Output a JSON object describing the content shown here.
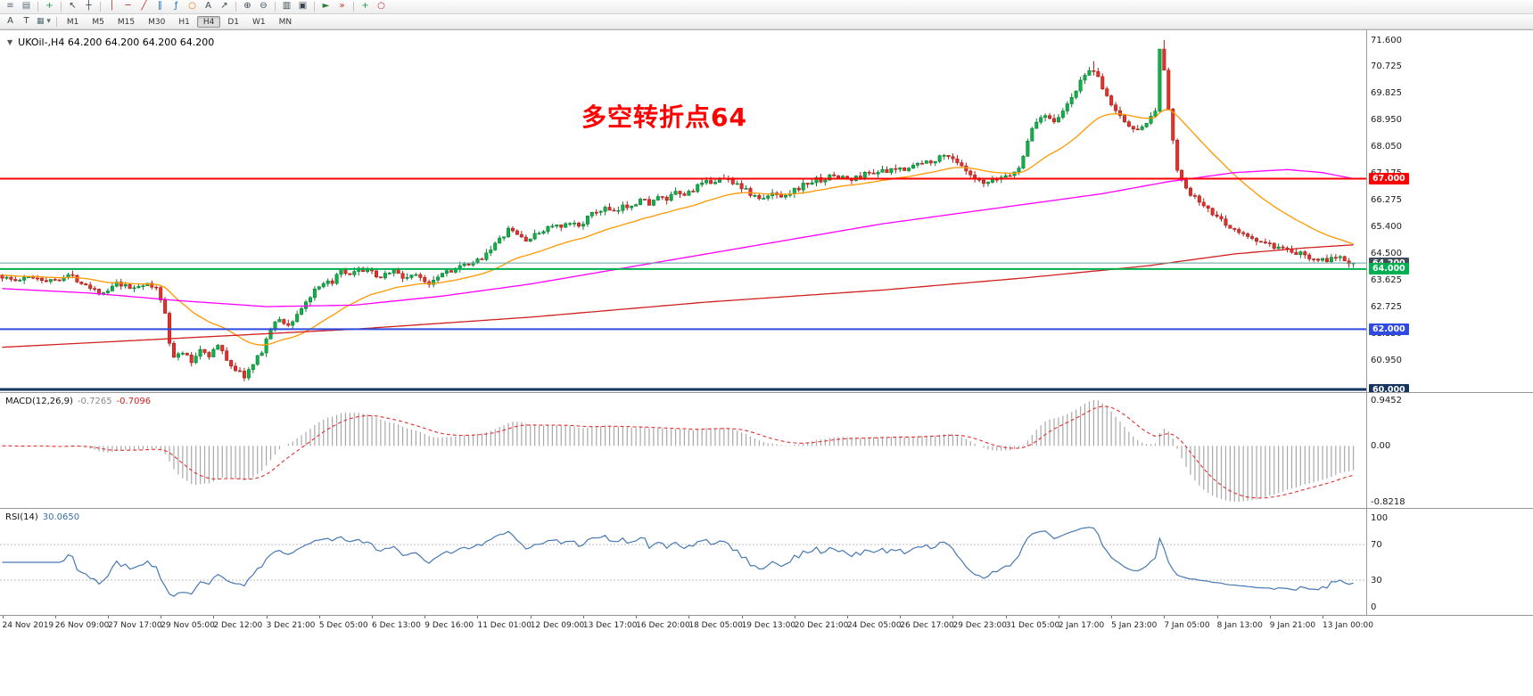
{
  "toolbar_main": {
    "items": [
      {
        "name": "market-watch-icon",
        "glyph": "≡",
        "color": "#546e7a"
      },
      {
        "name": "new-chart-icon",
        "glyph": "▤",
        "color": "#546e7a"
      },
      {
        "sep": true
      },
      {
        "name": "new-order-icon",
        "glyph": "+",
        "color": "#1e9e43"
      },
      {
        "sep": true
      },
      {
        "name": "cursor-icon",
        "glyph": "↖",
        "color": "#37474f"
      },
      {
        "name": "crosshair-icon",
        "glyph": "┼",
        "color": "#37474f"
      },
      {
        "sep": true
      },
      {
        "name": "vertical-line-icon",
        "glyph": "│",
        "color": "#c62828"
      },
      {
        "name": "horizontal-line-icon",
        "glyph": "─",
        "color": "#c62828"
      },
      {
        "name": "trendline-icon",
        "glyph": "╱",
        "color": "#c62828"
      },
      {
        "name": "channel-icon",
        "glyph": "∥",
        "color": "#1565c0"
      },
      {
        "name": "fibonacci-icon",
        "glyph": "ƒ",
        "color": "#1565c0"
      },
      {
        "name": "shapes-icon",
        "glyph": "○",
        "color": "#ef6c00"
      },
      {
        "name": "text-label-icon",
        "glyph": "A",
        "color": "#37474f"
      },
      {
        "name": "arrow-object-icon",
        "glyph": "↗",
        "color": "#37474f"
      },
      {
        "sep": true
      },
      {
        "name": "zoom-in-icon",
        "glyph": "⊕",
        "color": "#37474f"
      },
      {
        "name": "zoom-out-icon",
        "glyph": "⊖",
        "color": "#37474f"
      },
      {
        "sep": true
      },
      {
        "name": "tile-windows-icon",
        "glyph": "▥",
        "color": "#37474f"
      },
      {
        "name": "cascade-windows-icon",
        "glyph": "▣",
        "color": "#37474f"
      },
      {
        "sep": true
      },
      {
        "name": "auto-scroll-icon",
        "glyph": "►",
        "color": "#2e7d32"
      },
      {
        "name": "chart-shift-icon",
        "glyph": "»",
        "color": "#c62828"
      },
      {
        "sep": true
      },
      {
        "name": "indicators-add-icon",
        "glyph": "+",
        "color": "#1e9e43"
      },
      {
        "name": "alerts-icon",
        "glyph": "○",
        "color": "#c62828"
      }
    ]
  },
  "toolbar_tf": {
    "tools": [
      {
        "name": "font-tool-icon",
        "glyph": "A",
        "color": "#37474f"
      },
      {
        "name": "text-tool-icon",
        "glyph": "T",
        "color": "#37474f"
      },
      {
        "name": "style-dropdown",
        "glyph": "▦",
        "arrow": "▾",
        "color": "#546e7a"
      }
    ],
    "timeframes": [
      {
        "label": "M1"
      },
      {
        "label": "M5"
      },
      {
        "label": "M15"
      },
      {
        "label": "M30"
      },
      {
        "label": "H1"
      },
      {
        "label": "H4",
        "active": true
      },
      {
        "label": "D1"
      },
      {
        "label": "W1"
      },
      {
        "label": "MN"
      }
    ]
  },
  "chart": {
    "title": "UKOil-,H4 64.200 64.200 64.200 64.200",
    "annotation": {
      "text": "多空转折点64",
      "color": "#ff0000"
    },
    "price_axis_labels": [
      "71.600",
      "70.725",
      "69.825",
      "68.950",
      "68.050",
      "67.175",
      "66.275",
      "65.400",
      "64.500",
      "63.625",
      "62.725",
      "61.850",
      "60.950",
      "60.000"
    ],
    "levels": [
      {
        "value": 67.0,
        "label": "67.000",
        "color": "#ff0000",
        "width": 2
      },
      {
        "value": 64.2,
        "label": "64.200",
        "color": "#5fa49c",
        "label_bg": "#414d56",
        "width": 1,
        "style": "bid"
      },
      {
        "value": 64.0,
        "label": "64.000",
        "color": "#00b050",
        "width": 2
      },
      {
        "value": 62.0,
        "label": "62.000",
        "color": "#2f4be0",
        "width": 2
      },
      {
        "value": 60.0,
        "label": "60.000",
        "color": "#16355e",
        "width": 3
      }
    ],
    "colors": {
      "up": "#12b04a",
      "up_stroke": "#0a7f33",
      "down": "#e0332c",
      "down_stroke": "#a81f1a",
      "ma_fast": "#ff9800",
      "ma_mid": "#ff00ff",
      "ma_slow": "#d02020",
      "macd_bar": "#a8a8a8",
      "macd_signal": "#e23030",
      "rsi_line": "#4778b3",
      "rsi_level": "#bdbdbd"
    }
  },
  "macd": {
    "label": "MACD(12,26,9)",
    "value_main": "-0.7265",
    "value_signal": "-0.7096",
    "axis_top": "0.9452",
    "axis_zero": "0.00",
    "axis_bottom": "-0.8218"
  },
  "rsi": {
    "label": "RSI(14)",
    "value": "30.0650",
    "levels": [
      70,
      30
    ],
    "axis_labels": [
      {
        "value": 100,
        "text": "100"
      },
      {
        "value": 70,
        "text": "70"
      },
      {
        "value": 30,
        "text": "30"
      },
      {
        "value": 0,
        "text": "0"
      }
    ]
  },
  "chart_data": {
    "type": "candlestick",
    "symbol": "UKOil-",
    "timeframe": "H4",
    "ylim": [
      60.0,
      71.6
    ],
    "last_close": 64.2,
    "num_candles": 308,
    "label_every": 12,
    "close_path_anchors": [
      [
        0,
        63.8
      ],
      [
        4,
        63.6
      ],
      [
        8,
        63.75
      ],
      [
        12,
        63.6
      ],
      [
        16,
        63.8
      ],
      [
        20,
        63.5
      ],
      [
        24,
        63.15
      ],
      [
        27,
        63.5
      ],
      [
        30,
        63.35
      ],
      [
        33,
        63.5
      ],
      [
        36,
        63.35
      ],
      [
        38,
        62.6
      ],
      [
        39,
        61.6
      ],
      [
        40,
        61.05
      ],
      [
        42,
        61.25
      ],
      [
        44,
        60.9
      ],
      [
        46,
        61.35
      ],
      [
        48,
        61.15
      ],
      [
        50,
        61.45
      ],
      [
        52,
        61.0
      ],
      [
        54,
        60.65
      ],
      [
        56,
        60.45
      ],
      [
        58,
        60.8
      ],
      [
        60,
        61.3
      ],
      [
        62,
        62.0
      ],
      [
        64,
        62.35
      ],
      [
        66,
        62.1
      ],
      [
        68,
        62.5
      ],
      [
        70,
        62.9
      ],
      [
        72,
        63.25
      ],
      [
        74,
        63.45
      ],
      [
        76,
        63.6
      ],
      [
        78,
        63.9
      ],
      [
        80,
        63.75
      ],
      [
        82,
        63.95
      ],
      [
        84,
        64.0
      ],
      [
        86,
        63.7
      ],
      [
        88,
        63.85
      ],
      [
        90,
        63.95
      ],
      [
        92,
        63.7
      ],
      [
        94,
        63.8
      ],
      [
        96,
        63.7
      ],
      [
        98,
        63.55
      ],
      [
        100,
        63.8
      ],
      [
        102,
        63.95
      ],
      [
        104,
        64.0
      ],
      [
        106,
        64.1
      ],
      [
        108,
        64.15
      ],
      [
        110,
        64.4
      ],
      [
        112,
        64.7
      ],
      [
        114,
        64.95
      ],
      [
        116,
        65.3
      ],
      [
        118,
        65.15
      ],
      [
        120,
        64.95
      ],
      [
        122,
        65.1
      ],
      [
        124,
        65.3
      ],
      [
        126,
        65.45
      ],
      [
        128,
        65.35
      ],
      [
        130,
        65.5
      ],
      [
        132,
        65.45
      ],
      [
        134,
        65.7
      ],
      [
        136,
        65.9
      ],
      [
        138,
        66.0
      ],
      [
        140,
        65.85
      ],
      [
        142,
        66.05
      ],
      [
        144,
        66.15
      ],
      [
        146,
        66.3
      ],
      [
        148,
        66.2
      ],
      [
        150,
        66.35
      ],
      [
        152,
        66.3
      ],
      [
        154,
        66.5
      ],
      [
        156,
        66.45
      ],
      [
        158,
        66.65
      ],
      [
        160,
        66.8
      ],
      [
        162,
        66.9
      ],
      [
        164,
        67.0
      ],
      [
        166,
        66.95
      ],
      [
        168,
        66.85
      ],
      [
        170,
        66.6
      ],
      [
        172,
        66.4
      ],
      [
        174,
        66.3
      ],
      [
        176,
        66.5
      ],
      [
        178,
        66.45
      ],
      [
        180,
        66.55
      ],
      [
        182,
        66.7
      ],
      [
        184,
        66.85
      ],
      [
        186,
        66.95
      ],
      [
        188,
        67.0
      ],
      [
        190,
        67.1
      ],
      [
        192,
        67.05
      ],
      [
        194,
        66.95
      ],
      [
        196,
        67.1
      ],
      [
        198,
        67.2
      ],
      [
        200,
        67.25
      ],
      [
        202,
        67.2
      ],
      [
        204,
        67.3
      ],
      [
        206,
        67.35
      ],
      [
        208,
        67.45
      ],
      [
        210,
        67.5
      ],
      [
        212,
        67.6
      ],
      [
        214,
        67.7
      ],
      [
        216,
        67.8
      ],
      [
        218,
        67.55
      ],
      [
        220,
        67.2
      ],
      [
        222,
        66.95
      ],
      [
        224,
        66.8
      ],
      [
        226,
        66.9
      ],
      [
        228,
        67.05
      ],
      [
        230,
        67.15
      ],
      [
        232,
        67.3
      ],
      [
        234,
        68.3
      ],
      [
        236,
        68.9
      ],
      [
        238,
        69.15
      ],
      [
        240,
        68.95
      ],
      [
        242,
        69.2
      ],
      [
        244,
        69.7
      ],
      [
        246,
        70.2
      ],
      [
        248,
        70.65
      ],
      [
        250,
        70.3
      ],
      [
        252,
        69.7
      ],
      [
        254,
        69.25
      ],
      [
        256,
        68.9
      ],
      [
        258,
        68.6
      ],
      [
        260,
        68.8
      ],
      [
        262,
        69.0
      ],
      [
        263,
        69.3
      ],
      [
        264,
        71.3
      ],
      [
        265,
        70.6
      ],
      [
        266,
        69.3
      ],
      [
        267,
        68.2
      ],
      [
        268,
        67.3
      ],
      [
        270,
        66.6
      ],
      [
        272,
        66.35
      ],
      [
        274,
        66.1
      ],
      [
        276,
        65.8
      ],
      [
        279,
        65.5
      ],
      [
        282,
        65.2
      ],
      [
        285,
        65.0
      ],
      [
        288,
        64.85
      ],
      [
        291,
        64.65
      ],
      [
        294,
        64.55
      ],
      [
        297,
        64.45
      ],
      [
        300,
        64.35
      ],
      [
        303,
        64.3
      ],
      [
        305,
        64.45
      ],
      [
        307,
        64.2
      ]
    ],
    "spikes": [
      {
        "i": 264,
        "high": 71.6
      },
      {
        "i": 248,
        "high": 70.9
      },
      {
        "i": 56,
        "low": 60.3
      }
    ],
    "moving_averages": [
      {
        "name": "ma-fast",
        "type": "ema",
        "alpha": 0.07,
        "seed": 63.8
      },
      {
        "name": "ma-mid",
        "type": "anchors",
        "anchors": [
          [
            0,
            63.35
          ],
          [
            20,
            63.2
          ],
          [
            40,
            62.95
          ],
          [
            60,
            62.75
          ],
          [
            80,
            62.8
          ],
          [
            100,
            63.1
          ],
          [
            120,
            63.5
          ],
          [
            140,
            64.0
          ],
          [
            160,
            64.5
          ],
          [
            180,
            65.0
          ],
          [
            200,
            65.5
          ],
          [
            220,
            65.9
          ],
          [
            235,
            66.2
          ],
          [
            250,
            66.5
          ],
          [
            265,
            66.9
          ],
          [
            280,
            67.2
          ],
          [
            292,
            67.3
          ],
          [
            300,
            67.2
          ],
          [
            307,
            67.0
          ]
        ]
      },
      {
        "name": "ma-slow",
        "type": "anchors",
        "anchors": [
          [
            0,
            61.4
          ],
          [
            40,
            61.7
          ],
          [
            80,
            62.0
          ],
          [
            120,
            62.4
          ],
          [
            160,
            62.9
          ],
          [
            200,
            63.3
          ],
          [
            232,
            63.7
          ],
          [
            260,
            64.1
          ],
          [
            280,
            64.5
          ],
          [
            296,
            64.7
          ],
          [
            307,
            64.8
          ]
        ]
      }
    ],
    "macd_params": {
      "fast": 12,
      "slow": 26,
      "signal": 9
    },
    "rsi_params": {
      "period": 14
    },
    "time_labels": [
      "24 Nov 2019",
      "26 Nov 09:00",
      "27 Nov 17:00",
      "29 Nov 05:00",
      "2 Dec 12:00",
      "3 Dec 21:00",
      "5 Dec 05:00",
      "6 Dec 13:00",
      "9 Dec 16:00",
      "11 Dec 01:00",
      "12 Dec 09:00",
      "13 Dec 17:00",
      "16 Dec 20:00",
      "18 Dec 05:00",
      "19 Dec 13:00",
      "20 Dec 21:00",
      "24 Dec 05:00",
      "26 Dec 17:00",
      "29 Dec 23:00",
      "31 Dec 05:00",
      "2 Jan 17:00",
      "5 Jan 23:00",
      "7 Jan 05:00",
      "8 Jan 13:00",
      "9 Jan 21:00",
      "13 Jan 00:00"
    ]
  }
}
